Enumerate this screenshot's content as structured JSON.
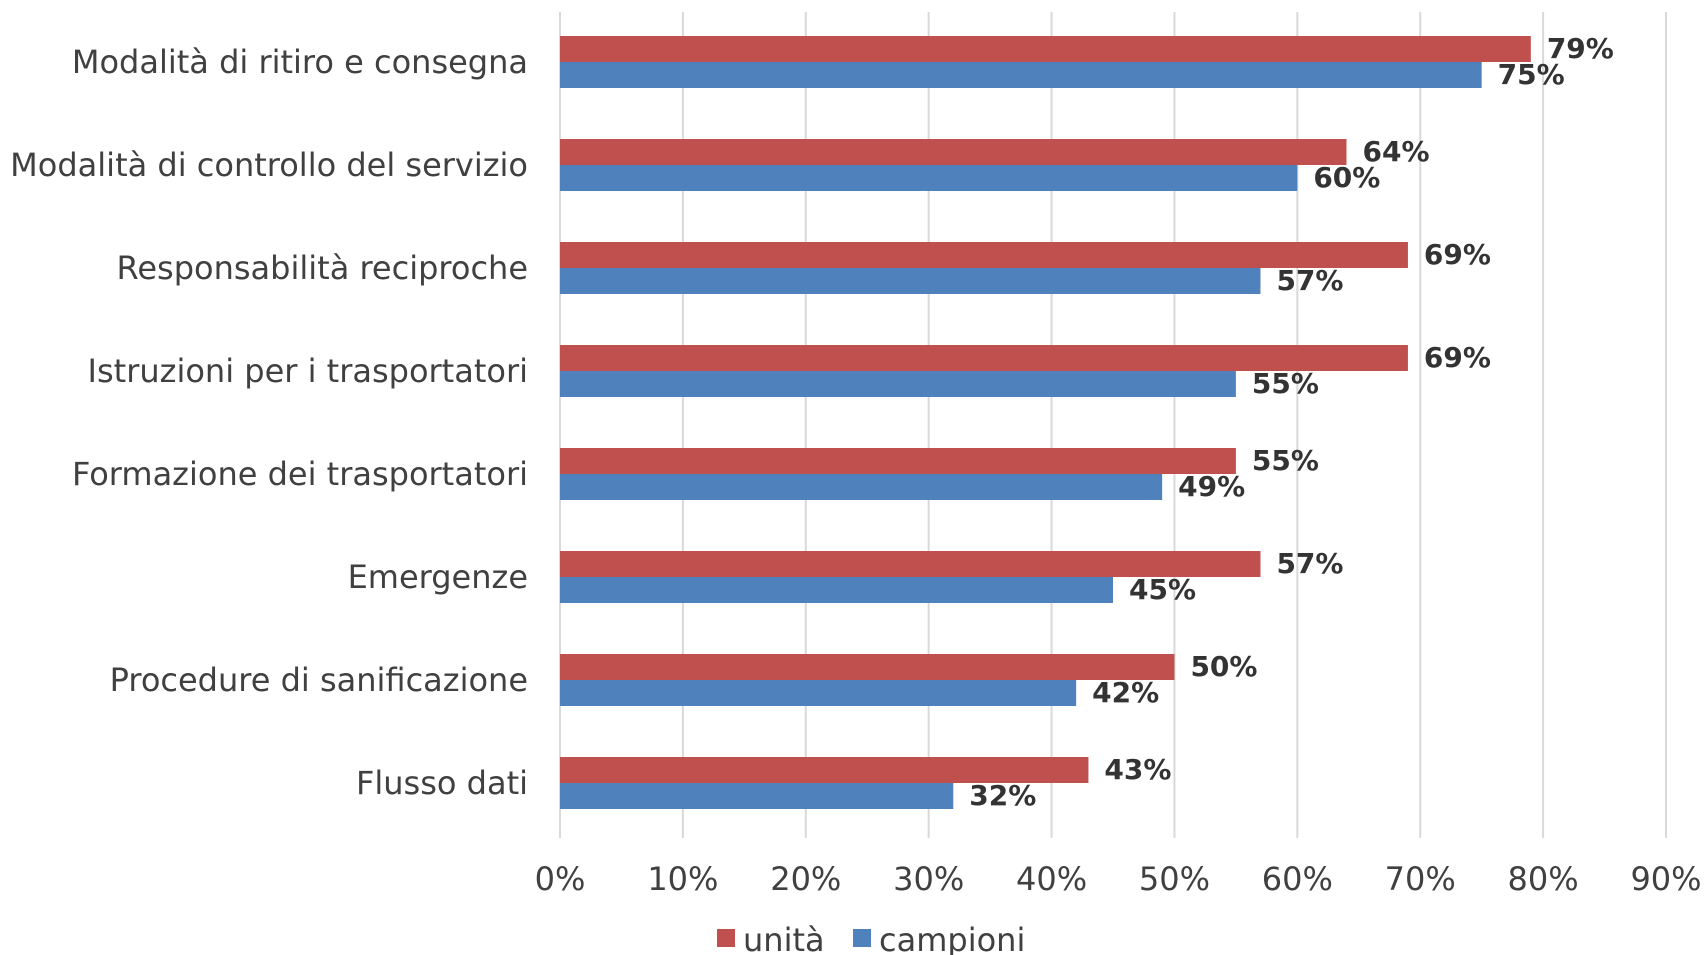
{
  "chart_data": {
    "type": "bar",
    "orientation": "horizontal",
    "categories": [
      "Modalità di ritiro e consegna",
      "Modalità di controllo del servizio",
      "Responsabilità reciproche",
      "Istruzioni per i trasportatori",
      "Formazione dei trasportatori",
      "Emergenze",
      "Procedure di sanificazione",
      "Flusso dati"
    ],
    "series": [
      {
        "name": "unità",
        "color": "#c0504d",
        "values": [
          79,
          64,
          69,
          69,
          55,
          57,
          50,
          43
        ]
      },
      {
        "name": "campioni",
        "color": "#4f81bd",
        "values": [
          75,
          60,
          57,
          55,
          49,
          45,
          42,
          32
        ]
      }
    ],
    "xlim": [
      0,
      90
    ],
    "xticks": [
      0,
      10,
      20,
      30,
      40,
      50,
      60,
      70,
      80,
      90
    ],
    "tick_suffix": "%",
    "value_suffix": "%",
    "grid": "vertical",
    "legend": "bottom",
    "title": "",
    "xlabel": "",
    "ylabel": ""
  }
}
